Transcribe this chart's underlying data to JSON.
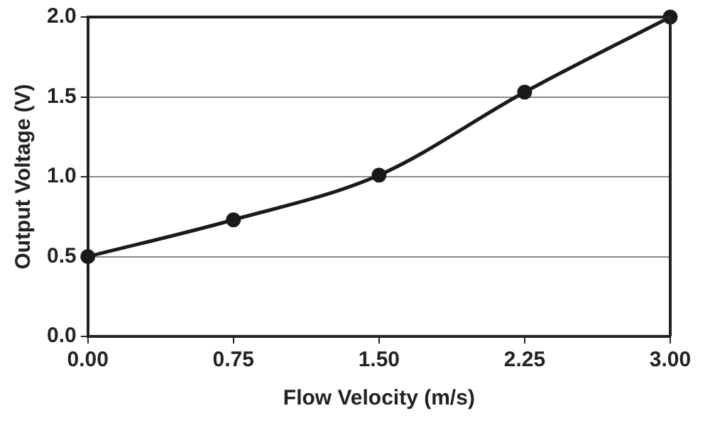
{
  "chart_data": {
    "type": "line",
    "xlabel": "Flow Velocity (m/s)",
    "ylabel": "Output Voltage (V)",
    "x": [
      0,
      0.75,
      1.5,
      2.25,
      3
    ],
    "series": [
      {
        "color": "#1a1a1a",
        "values": [
          0.5,
          0.73,
          1.01,
          1.53,
          2.0
        ]
      }
    ],
    "xlim": [
      0,
      3
    ],
    "ylim": [
      0,
      2
    ],
    "xticks": [
      {
        "value": 0,
        "label": "0.00"
      },
      {
        "value": 0.75,
        "label": "0.75"
      },
      {
        "value": 1.5,
        "label": "1.50"
      },
      {
        "value": 2.25,
        "label": "2.25"
      },
      {
        "value": 3,
        "label": "3.00"
      }
    ],
    "yticks": [
      {
        "value": 0,
        "label": "0.0"
      },
      {
        "value": 0.5,
        "label": "0.5"
      },
      {
        "value": 1,
        "label": "1.0"
      },
      {
        "value": 1.5,
        "label": "1.5"
      },
      {
        "value": 2,
        "label": "2.0"
      }
    ],
    "grid": "y",
    "marker": "circle",
    "line_style": "solid",
    "legend": false
  }
}
